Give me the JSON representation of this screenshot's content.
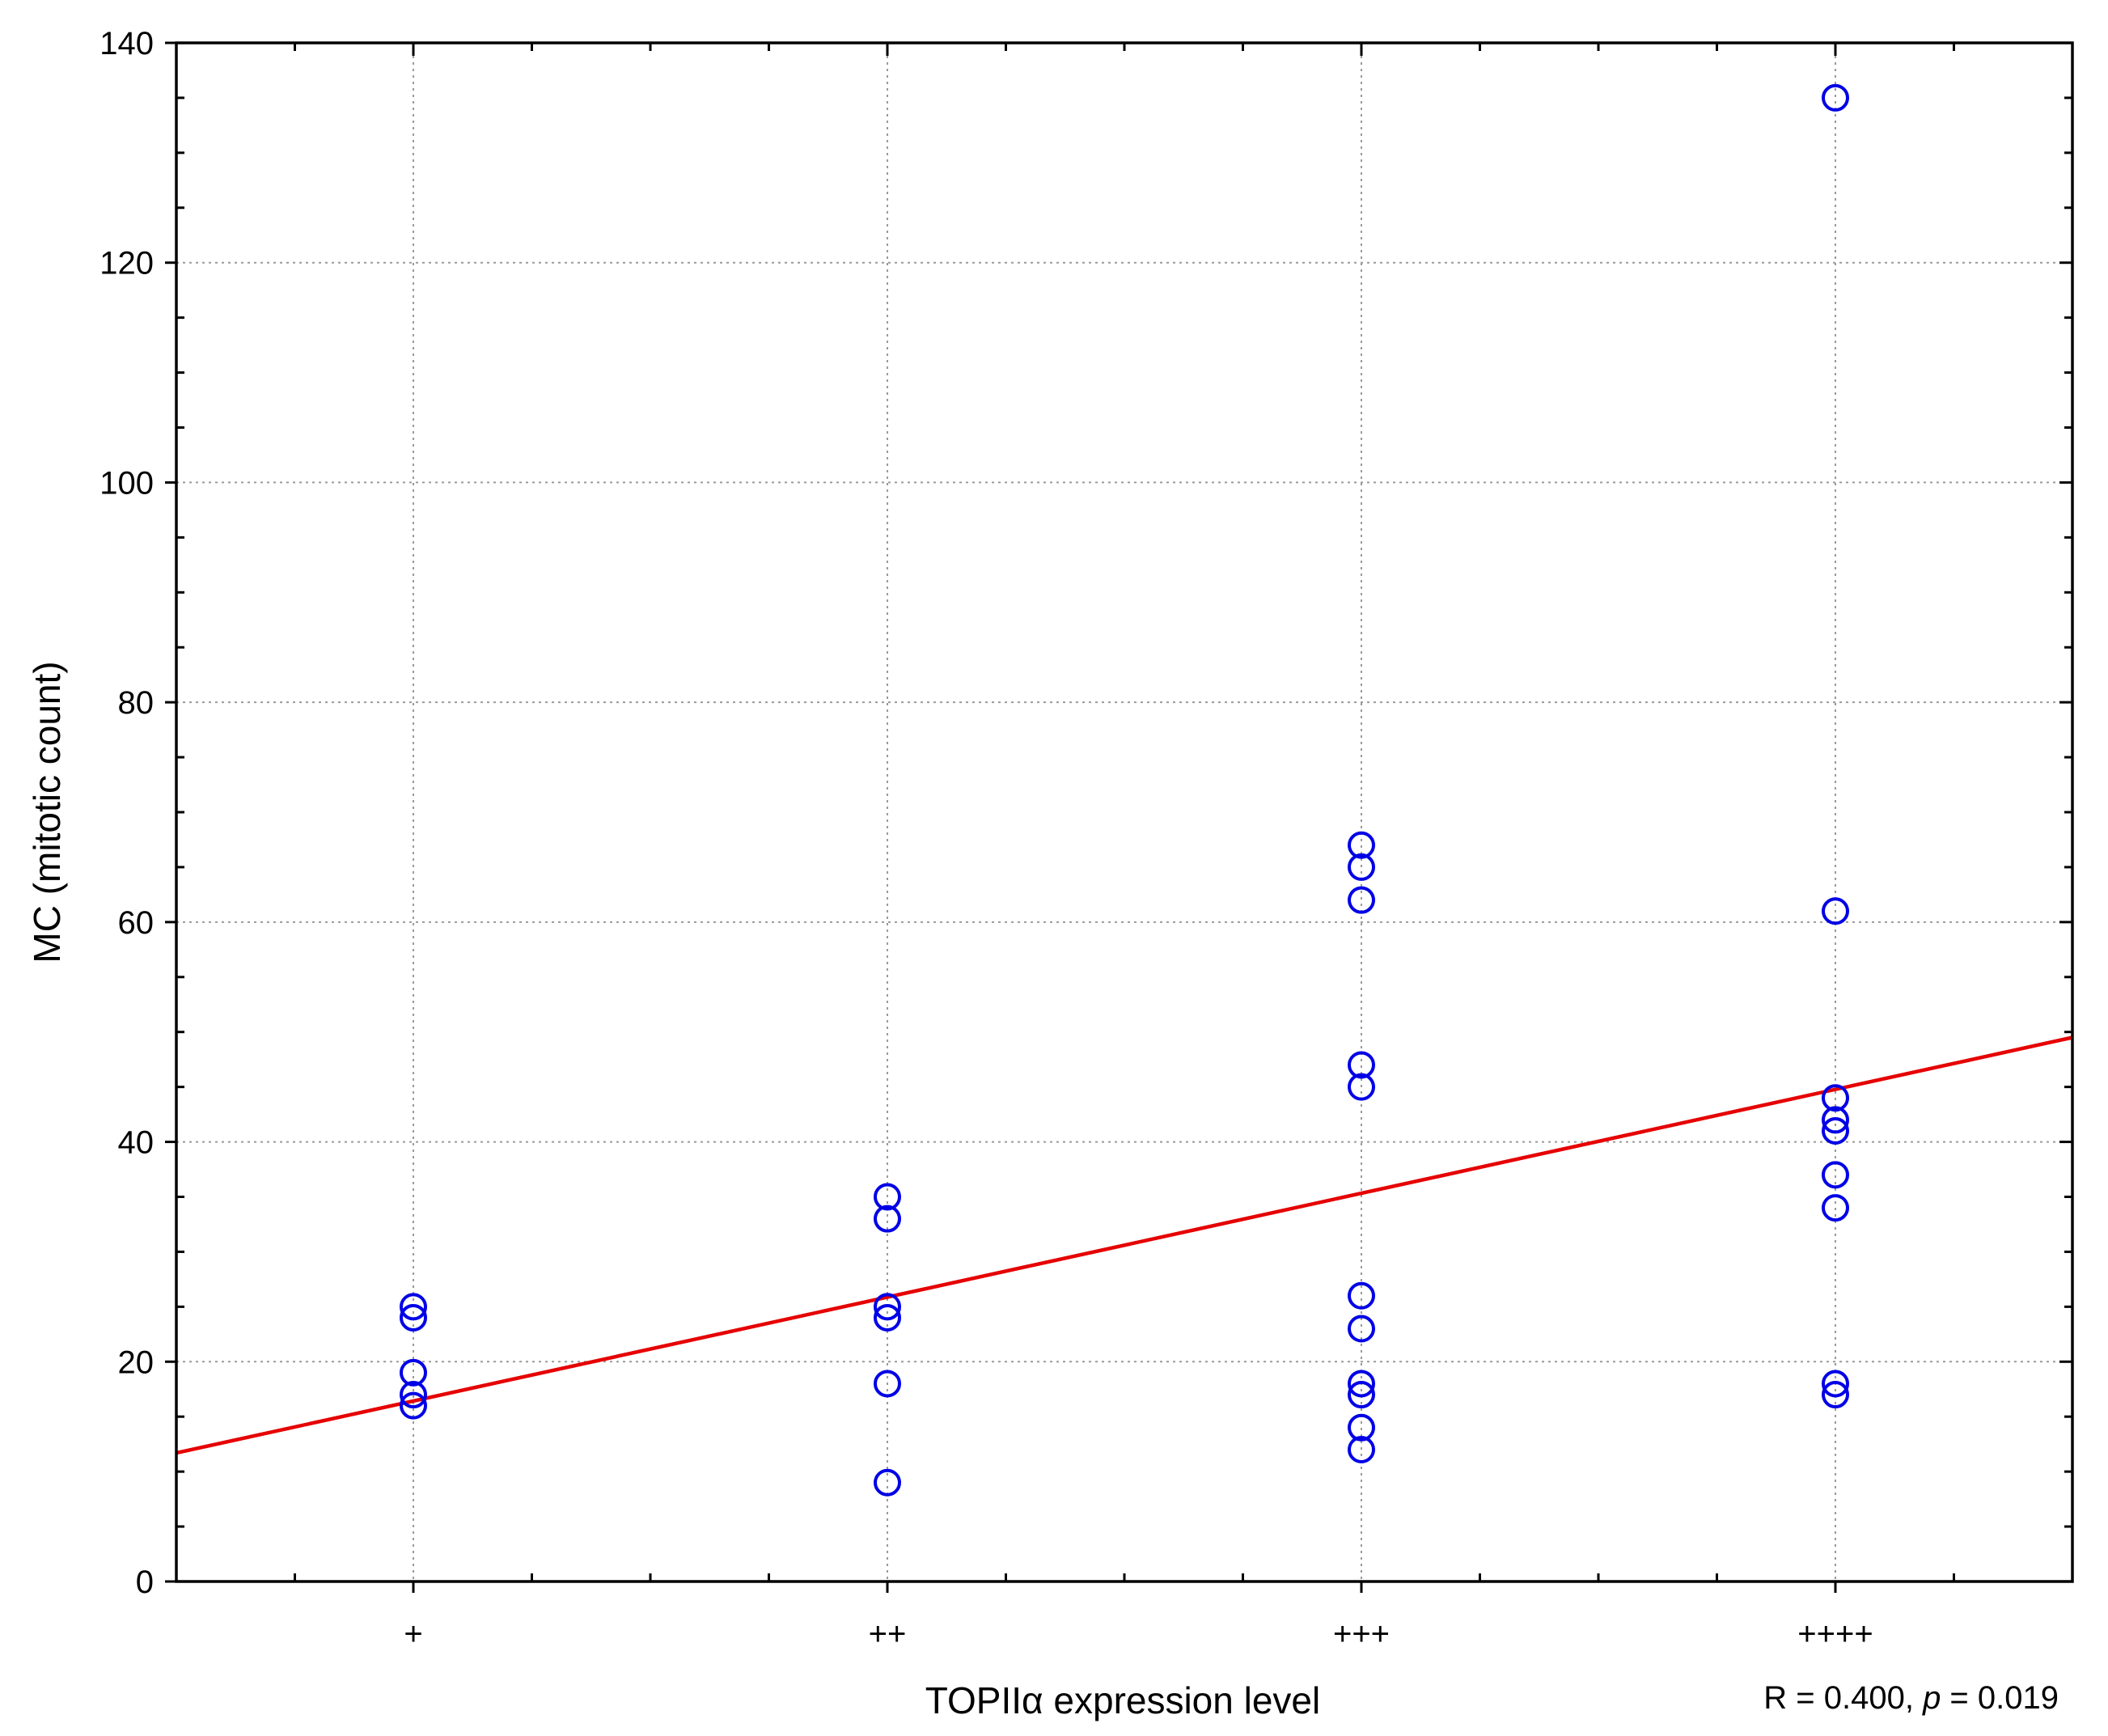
{
  "chart_data": {
    "type": "scatter",
    "xlabel": "TOPIIα expression level",
    "ylabel": "MC (mitotic count)",
    "categories": [
      "+",
      "++",
      "+++",
      "++++"
    ],
    "x_range": [
      0.5,
      4.5
    ],
    "ylim": [
      0,
      140
    ],
    "y_ticks": [
      0,
      20,
      40,
      60,
      80,
      100,
      120,
      140
    ],
    "grid": true,
    "points": [
      {
        "x": 1,
        "y": 25
      },
      {
        "x": 1,
        "y": 24
      },
      {
        "x": 1,
        "y": 19
      },
      {
        "x": 1,
        "y": 17
      },
      {
        "x": 1,
        "y": 16
      },
      {
        "x": 2,
        "y": 35
      },
      {
        "x": 2,
        "y": 33
      },
      {
        "x": 2,
        "y": 25
      },
      {
        "x": 2,
        "y": 24
      },
      {
        "x": 2,
        "y": 18
      },
      {
        "x": 2,
        "y": 9
      },
      {
        "x": 3,
        "y": 67
      },
      {
        "x": 3,
        "y": 65
      },
      {
        "x": 3,
        "y": 62
      },
      {
        "x": 3,
        "y": 47
      },
      {
        "x": 3,
        "y": 45
      },
      {
        "x": 3,
        "y": 26
      },
      {
        "x": 3,
        "y": 23
      },
      {
        "x": 3,
        "y": 18
      },
      {
        "x": 3,
        "y": 17
      },
      {
        "x": 3,
        "y": 14
      },
      {
        "x": 3,
        "y": 12
      },
      {
        "x": 4,
        "y": 135
      },
      {
        "x": 4,
        "y": 61
      },
      {
        "x": 4,
        "y": 44
      },
      {
        "x": 4,
        "y": 42
      },
      {
        "x": 4,
        "y": 41
      },
      {
        "x": 4,
        "y": 37
      },
      {
        "x": 4,
        "y": 34
      },
      {
        "x": 4,
        "y": 18
      },
      {
        "x": 4,
        "y": 17
      }
    ],
    "regression": {
      "x": [
        0.5,
        4.5
      ],
      "y": [
        11.7,
        49.5
      ]
    },
    "annotation": {
      "prefix": "R = 0.400, ",
      "p_symbol": "p",
      "suffix": " = 0.019"
    },
    "colors": {
      "points": "#0000e6",
      "fit_line": "#e60000"
    }
  }
}
